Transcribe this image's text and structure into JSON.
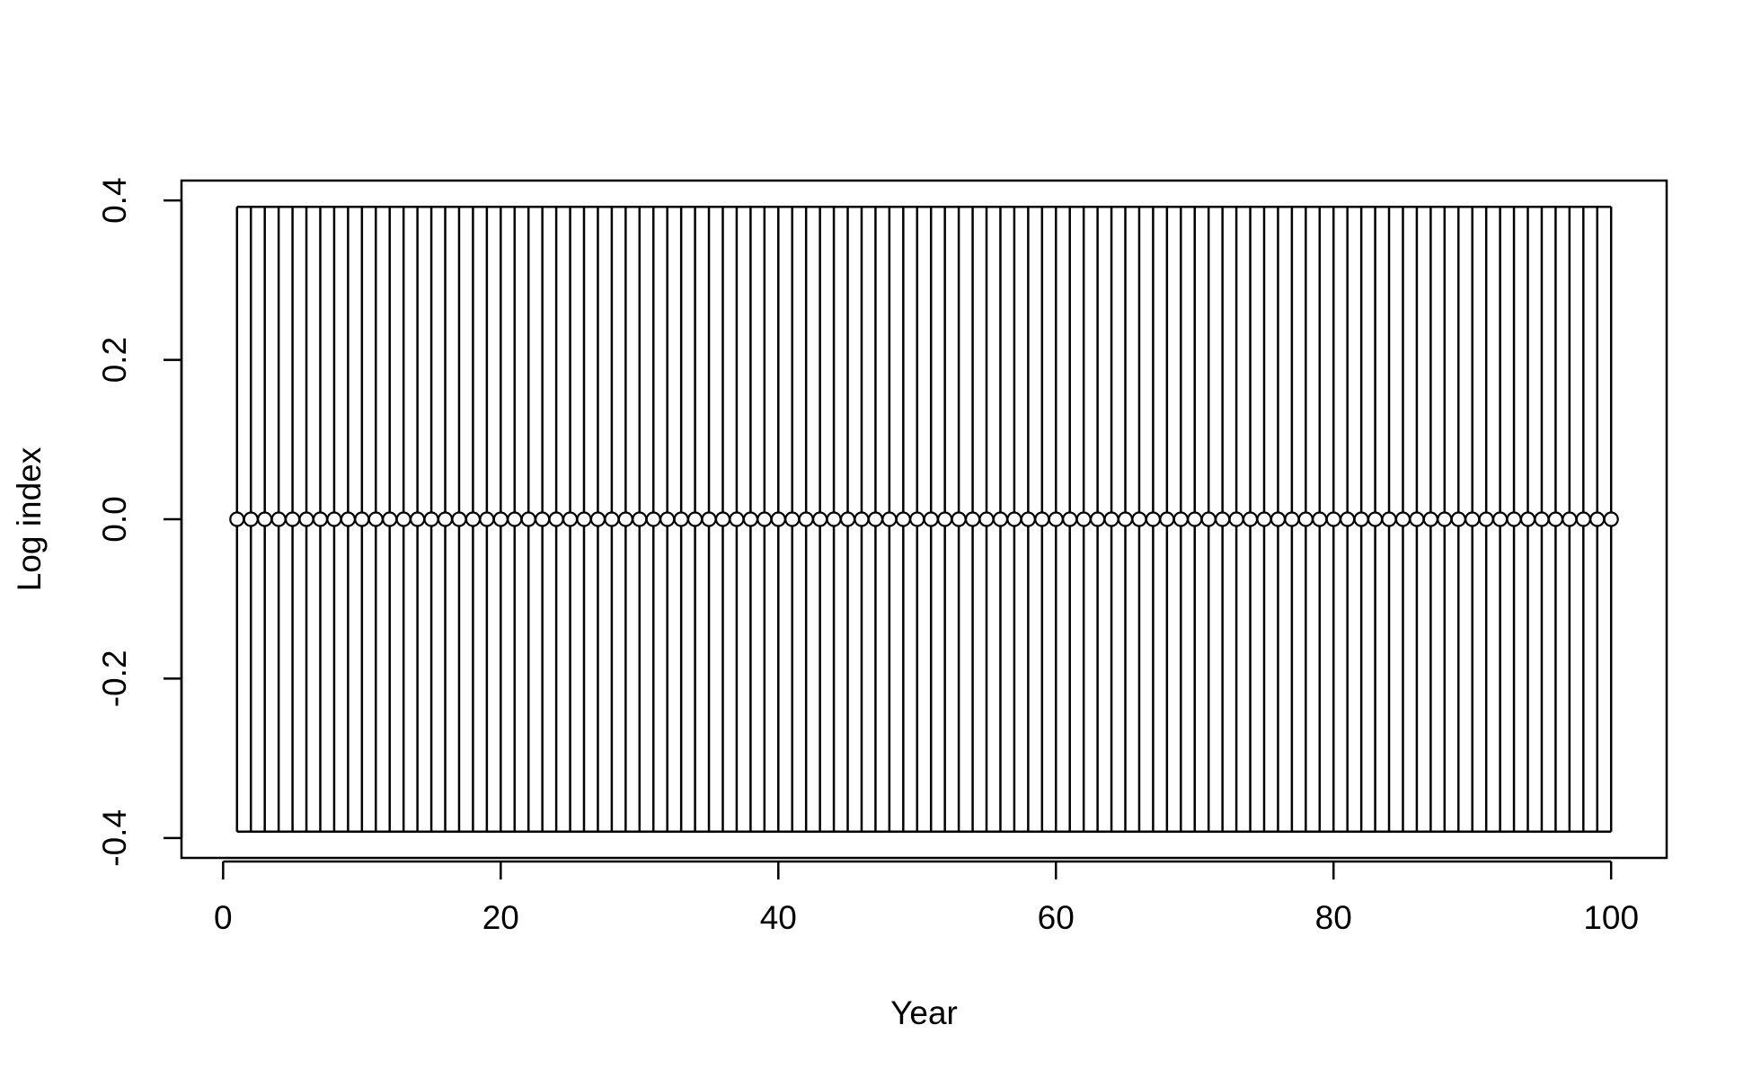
{
  "chart_data": {
    "type": "scatter",
    "title": "",
    "xlabel": "Year",
    "ylabel": "Log index",
    "xlim": [
      -3,
      104
    ],
    "ylim": [
      -0.425,
      0.425
    ],
    "x_ticks": [
      0,
      20,
      40,
      60,
      80,
      100
    ],
    "x_tick_labels": [
      "0",
      "20",
      "40",
      "60",
      "80",
      "100"
    ],
    "y_ticks": [
      -0.4,
      -0.2,
      0.0,
      0.2,
      0.4
    ],
    "y_tick_labels": [
      "-0.4",
      "-0.2",
      "0.0",
      "0.2",
      "0.4"
    ],
    "grid": false,
    "legend": "none",
    "point_style": "open-circle",
    "colors": {
      "points": "#000000",
      "point_fill": "#ffffff",
      "bars": "#000000"
    },
    "series": [
      {
        "x_start": 1,
        "x_end": 100,
        "x_step": 1,
        "y_value": 0.0,
        "error_bar_upper": 0.392,
        "error_bar_lower": -0.392
      }
    ]
  }
}
